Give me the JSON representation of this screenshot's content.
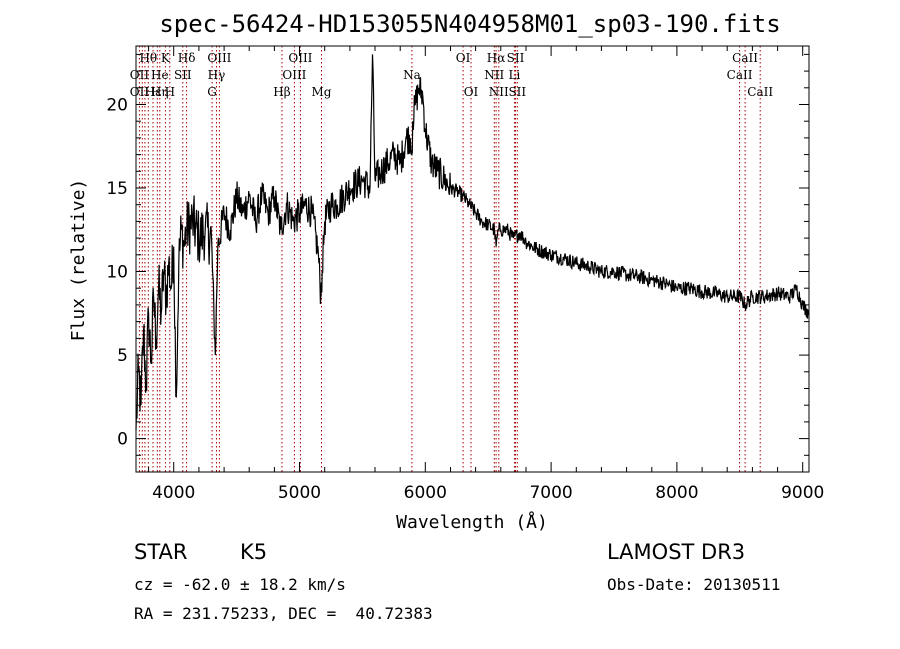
{
  "chart_data": {
    "type": "line",
    "title": "spec-56424-HD153055N404958M01_sp03-190.fits",
    "xlabel": "Wavelength (Å)",
    "ylabel": "Flux (relative)",
    "xlim": [
      3700,
      9050
    ],
    "ylim": [
      -2,
      23.5
    ],
    "xticks": [
      4000,
      5000,
      6000,
      7000,
      8000,
      9000
    ],
    "yticks": [
      0,
      5,
      10,
      15,
      20
    ],
    "series": [
      {
        "name": "spectrum",
        "x": [
          3700,
          3720,
          3740,
          3760,
          3780,
          3800,
          3820,
          3840,
          3860,
          3880,
          3900,
          3920,
          3940,
          3960,
          3980,
          4000,
          4020,
          4040,
          4060,
          4080,
          4100,
          4150,
          4200,
          4250,
          4300,
          4330,
          4350,
          4400,
          4450,
          4500,
          4550,
          4600,
          4650,
          4700,
          4750,
          4800,
          4850,
          4900,
          4950,
          5000,
          5050,
          5100,
          5150,
          5170,
          5180,
          5200,
          5250,
          5300,
          5400,
          5500,
          5560,
          5580,
          5600,
          5650,
          5700,
          5750,
          5800,
          5850,
          5880,
          5893,
          5900,
          5920,
          5950,
          5980,
          6000,
          6050,
          6100,
          6150,
          6200,
          6250,
          6300,
          6350,
          6400,
          6450,
          6500,
          6550,
          6563,
          6580,
          6600,
          6650,
          6700,
          6750,
          6800,
          6850,
          6900,
          7000,
          7100,
          7200,
          7300,
          7400,
          7500,
          7600,
          7700,
          7800,
          7900,
          8000,
          8100,
          8200,
          8300,
          8400,
          8500,
          8542,
          8600,
          8700,
          8800,
          8900,
          8950,
          9000,
          9050
        ],
        "y": [
          0.5,
          4.0,
          2.0,
          6.5,
          3.0,
          7.5,
          4.5,
          8.5,
          6.0,
          9.0,
          7.5,
          10.0,
          8.5,
          10.5,
          9.0,
          11.5,
          2.5,
          10.5,
          12.5,
          11.5,
          12.5,
          13.0,
          12.0,
          12.5,
          12.0,
          5.0,
          11.5,
          13.5,
          12.5,
          14.5,
          13.5,
          14.5,
          13.0,
          14.5,
          13.5,
          14.5,
          12.5,
          14.0,
          13.0,
          13.5,
          14.0,
          13.5,
          11.0,
          8.5,
          10.0,
          13.0,
          14.0,
          14.0,
          15.0,
          15.5,
          15.0,
          23.0,
          15.5,
          16.0,
          16.5,
          17.0,
          16.5,
          18.0,
          18.0,
          17.0,
          19.0,
          20.0,
          21.0,
          20.5,
          18.5,
          16.5,
          16.0,
          15.5,
          15.0,
          14.8,
          14.5,
          14.0,
          13.5,
          13.0,
          12.8,
          12.5,
          11.5,
          12.5,
          12.5,
          12.5,
          12.0,
          12.3,
          11.8,
          11.5,
          11.3,
          11.0,
          10.8,
          10.5,
          10.3,
          10.0,
          10.0,
          9.8,
          9.7,
          9.5,
          9.3,
          9.0,
          9.0,
          8.8,
          8.7,
          8.5,
          8.5,
          8.0,
          8.5,
          8.5,
          8.7,
          8.5,
          9.0,
          8.0,
          7.5
        ]
      }
    ],
    "line_labels": [
      {
        "text": "Hθ",
        "wavelength": 3798,
        "row": 1
      },
      {
        "text": "K",
        "wavelength": 3934,
        "row": 1
      },
      {
        "text": "Hδ",
        "wavelength": 4102,
        "row": 1
      },
      {
        "text": "OIII",
        "wavelength": 4363,
        "row": 1
      },
      {
        "text": "OIII",
        "wavelength": 5007,
        "row": 1
      },
      {
        "text": "OI",
        "wavelength": 6300,
        "row": 1
      },
      {
        "text": "Hα",
        "wavelength": 6563,
        "row": 1
      },
      {
        "text": "SII",
        "wavelength": 6717,
        "row": 1
      },
      {
        "text": "CaII",
        "wavelength": 8542,
        "row": 1
      },
      {
        "text": "OII",
        "wavelength": 3727,
        "row": 2
      },
      {
        "text": "He",
        "wavelength": 3889,
        "row": 2
      },
      {
        "text": "SII",
        "wavelength": 4072,
        "row": 2
      },
      {
        "text": "Hγ",
        "wavelength": 4340,
        "row": 2
      },
      {
        "text": "OIII",
        "wavelength": 4959,
        "row": 2
      },
      {
        "text": "NII",
        "wavelength": 6548,
        "row": 2
      },
      {
        "text": "Li",
        "wavelength": 6708,
        "row": 2
      },
      {
        "text": "CaII",
        "wavelength": 8498,
        "row": 2
      },
      {
        "text": "OII",
        "wavelength": 3727,
        "row": 3
      },
      {
        "text": "Hε",
        "wavelength": 3835,
        "row": 3
      },
      {
        "text": "Hη",
        "wavelength": 3889,
        "row": 3
      },
      {
        "text": "H",
        "wavelength": 3969,
        "row": 3
      },
      {
        "text": "G",
        "wavelength": 4305,
        "row": 3
      },
      {
        "text": "Hβ",
        "wavelength": 4861,
        "row": 3
      },
      {
        "text": "Mg",
        "wavelength": 5175,
        "row": 3
      },
      {
        "text": "Na",
        "wavelength": 5893,
        "row": 2
      },
      {
        "text": "OI",
        "wavelength": 6363,
        "row": 3
      },
      {
        "text": "NII",
        "wavelength": 6584,
        "row": 3
      },
      {
        "text": "SII",
        "wavelength": 6731,
        "row": 3
      },
      {
        "text": "CaII",
        "wavelength": 8662,
        "row": 3
      }
    ],
    "line_markers": [
      3727,
      3750,
      3771,
      3798,
      3835,
      3869,
      3889,
      3934,
      3969,
      4072,
      4102,
      4305,
      4340,
      4363,
      4861,
      4959,
      5007,
      5175,
      5893,
      6300,
      6363,
      6548,
      6563,
      6584,
      6708,
      6717,
      6731,
      8498,
      8542,
      8662
    ]
  },
  "info": {
    "object_class": "STAR",
    "subclass": "K5",
    "survey": "LAMOST DR3",
    "redshift": "cz = -62.0 ± 18.2 km/s",
    "obs_date": "Obs-Date: 20130511",
    "coords": "RA = 231.75233, DEC =  40.72383"
  },
  "colors": {
    "spectrum": "#000000",
    "marker": "#b00000"
  }
}
